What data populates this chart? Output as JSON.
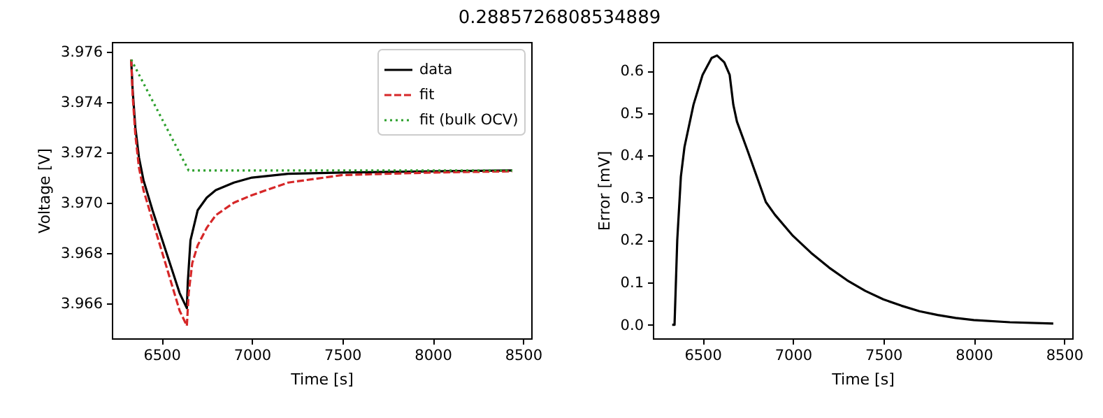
{
  "chart_data": [
    {
      "type": "line",
      "title": "0.2885726808534889",
      "xlabel": "Time [s]",
      "ylabel": "Voltage [V]",
      "xlim": [
        6225,
        8545
      ],
      "ylim": [
        3.9646,
        3.9764
      ],
      "xticks": [
        6500,
        7000,
        7500,
        8000,
        8500
      ],
      "yticks": [
        3.966,
        3.968,
        {
          "value": 3.97,
          "label": "3.970"
        },
        3.972,
        3.974,
        3.976
      ],
      "grid": false,
      "legend": "top right",
      "series": [
        {
          "name": "data",
          "color": "#000000",
          "line_style": "solid",
          "x": [
            6332,
            6340,
            6355,
            6375,
            6400,
            6450,
            6500,
            6550,
            6600,
            6640,
            6645,
            6660,
            6700,
            6750,
            6800,
            6900,
            7000,
            7200,
            7500,
            8000,
            8440
          ],
          "values": [
            3.9757,
            3.9745,
            3.973,
            3.9718,
            3.9709,
            3.9697,
            3.9686,
            3.9675,
            3.9664,
            3.9658,
            3.9668,
            3.9685,
            3.9697,
            3.9702,
            3.9705,
            3.9708,
            3.971,
            3.97115,
            3.9712,
            3.97125,
            3.97128
          ]
        },
        {
          "name": "fit",
          "color": "#d62728",
          "line_style": "dashed",
          "x": [
            6332,
            6340,
            6355,
            6375,
            6400,
            6450,
            6500,
            6550,
            6600,
            6640,
            6650,
            6670,
            6700,
            6750,
            6800,
            6900,
            7000,
            7200,
            7500,
            8000,
            8440
          ],
          "values": [
            3.9757,
            3.9743,
            3.9727,
            3.9714,
            3.9705,
            3.9693,
            3.9681,
            3.9669,
            3.9657,
            3.9651,
            3.9664,
            3.9676,
            3.9683,
            3.969,
            3.9695,
            3.97,
            3.9703,
            3.9708,
            3.9711,
            3.9712,
            3.97125
          ]
        },
        {
          "name": "fit (bulk OCV)",
          "color": "#2ca02c",
          "line_style": "dotted",
          "x": [
            6332,
            6650,
            8440
          ],
          "values": [
            3.9757,
            3.97128,
            3.97128
          ]
        }
      ]
    },
    {
      "type": "line",
      "xlabel": "Time [s]",
      "ylabel": "Error [mV]",
      "xlim": [
        6225,
        8545
      ],
      "ylim": [
        -0.032,
        0.668
      ],
      "xticks": [
        6500,
        7000,
        7500,
        8000,
        8500
      ],
      "yticks": [
        {
          "value": 0,
          "label": "0.0"
        },
        0.1,
        0.2,
        0.3,
        0.4,
        0.5,
        0.6
      ],
      "grid": false,
      "series": [
        {
          "color": "#000000",
          "x": [
            6332,
            6345,
            6360,
            6380,
            6400,
            6450,
            6500,
            6550,
            6580,
            6620,
            6650,
            6670,
            6690,
            6750,
            6800,
            6850,
            6900,
            7000,
            7100,
            7200,
            7300,
            7400,
            7500,
            7600,
            7700,
            7800,
            7900,
            8000,
            8200,
            8440
          ],
          "values": [
            0,
            0,
            0.2,
            0.35,
            0.42,
            0.52,
            0.59,
            0.63,
            0.636,
            0.62,
            0.59,
            0.52,
            0.48,
            0.41,
            0.35,
            0.29,
            0.26,
            0.21,
            0.17,
            0.135,
            0.105,
            0.08,
            0.06,
            0.045,
            0.032,
            0.023,
            0.016,
            0.011,
            0.006,
            0.003
          ]
        }
      ]
    }
  ]
}
